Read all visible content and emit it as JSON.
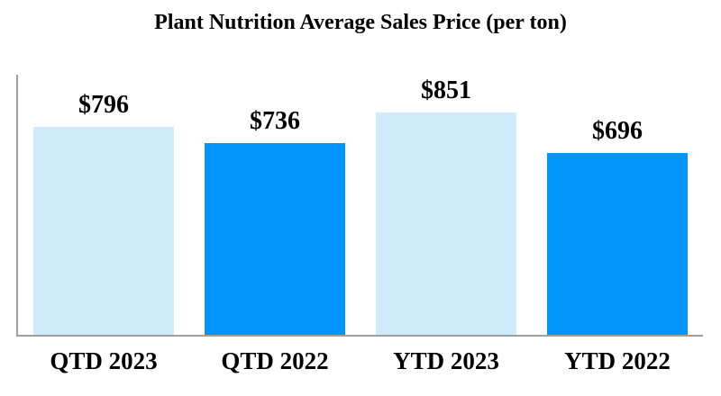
{
  "chart_data": {
    "type": "bar",
    "title": "Plant Nutrition Average Sales Price (per ton)",
    "categories": [
      "QTD 2023",
      "QTD 2022",
      "YTD 2023",
      "YTD 2022"
    ],
    "values": [
      796,
      736,
      851,
      696
    ],
    "value_labels": [
      "$796",
      "$736",
      "$851",
      "$696"
    ],
    "xlabel": "",
    "ylabel": "",
    "ylim": [
      0,
      1000
    ],
    "grid": false,
    "legend": false,
    "bar_colors": [
      "#D0ECFC",
      "#0195FB",
      "#D0ECFC",
      "#0195FB"
    ],
    "colors": {
      "light_blue": "#D0ECFC",
      "bright_blue": "#0195FB",
      "axis_gray": "#A0A0A0",
      "text_black": "#000000",
      "background": "#FFFFFF"
    }
  }
}
